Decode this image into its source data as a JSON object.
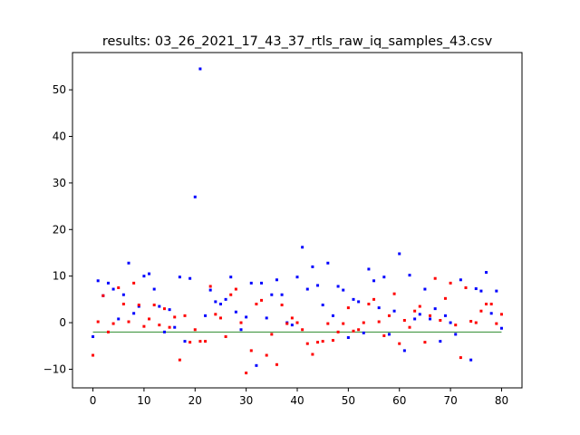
{
  "colors": {
    "series_a": "#0000ff",
    "series_b": "#ff0000",
    "hline": "#2e8b2e",
    "axes": "#000000",
    "background": "#ffffff"
  },
  "chart_data": {
    "type": "scatter",
    "title": "results: 03_26_2021_17_43_37_rtls_raw_iq_samples_43.csv",
    "xlabel": "",
    "ylabel": "",
    "xlim": [
      -4,
      84
    ],
    "ylim": [
      -14,
      58
    ],
    "grid": false,
    "legend": "none",
    "x_ticks": [
      0,
      10,
      20,
      30,
      40,
      50,
      60,
      70,
      80
    ],
    "y_ticks": [
      -10,
      0,
      10,
      20,
      30,
      40,
      50
    ],
    "x_tick_labels": [
      "0",
      "10",
      "20",
      "30",
      "40",
      "50",
      "60",
      "70",
      "80"
    ],
    "y_tick_labels": [
      "−10",
      "0",
      "10",
      "20",
      "30",
      "40",
      "50"
    ],
    "hline": {
      "y": -2,
      "x_range": [
        0,
        80
      ]
    },
    "series": [
      {
        "color": "#0000ff",
        "x": [
          0,
          1,
          2,
          3,
          4,
          5,
          6,
          7,
          8,
          9,
          10,
          11,
          12,
          13,
          14,
          15,
          16,
          17,
          18,
          19,
          20,
          21,
          22,
          23,
          24,
          25,
          26,
          27,
          28,
          29,
          30,
          31,
          32,
          33,
          34,
          35,
          36,
          37,
          38,
          39,
          40,
          41,
          42,
          43,
          44,
          45,
          46,
          47,
          48,
          49,
          50,
          51,
          52,
          53,
          54,
          55,
          56,
          57,
          58,
          59,
          60,
          61,
          62,
          63,
          64,
          65,
          66,
          67,
          68,
          69,
          70,
          71,
          72,
          73,
          74,
          75,
          76,
          77,
          78,
          79,
          80
        ],
        "y": [
          -3.0,
          9.0,
          5.8,
          8.5,
          7.2,
          0.8,
          6.0,
          12.8,
          2.0,
          3.5,
          10.0,
          10.5,
          7.2,
          3.5,
          -2.0,
          2.8,
          -1.0,
          9.8,
          -4.0,
          9.5,
          27.0,
          54.5,
          1.5,
          7.0,
          4.5,
          4.0,
          5.0,
          9.8,
          2.3,
          -1.5,
          1.2,
          8.5,
          -9.2,
          8.5,
          1.0,
          6.0,
          9.2,
          6.0,
          0.0,
          -0.5,
          9.8,
          16.2,
          7.2,
          12.0,
          8.0,
          3.8,
          12.8,
          1.5,
          7.8,
          7.0,
          -3.2,
          5.0,
          4.5,
          -2.2,
          11.5,
          9.0,
          3.2,
          9.8,
          -2.5,
          2.5,
          14.8,
          -6.0,
          10.2,
          0.8,
          1.8,
          7.2,
          0.8,
          3.0,
          -4.0,
          1.5,
          0.0,
          -2.5,
          9.2,
          7.5,
          -8.0,
          7.3,
          6.8,
          10.8,
          2.0,
          6.8,
          -1.2
        ]
      },
      {
        "color": "#ff0000",
        "x": [
          0,
          1,
          2,
          3,
          4,
          5,
          6,
          7,
          8,
          9,
          10,
          11,
          12,
          13,
          14,
          15,
          16,
          17,
          18,
          19,
          20,
          21,
          22,
          23,
          24,
          25,
          26,
          27,
          28,
          29,
          30,
          31,
          32,
          33,
          34,
          35,
          36,
          37,
          38,
          39,
          40,
          41,
          42,
          43,
          44,
          45,
          46,
          47,
          48,
          49,
          50,
          51,
          52,
          53,
          54,
          55,
          56,
          57,
          58,
          59,
          60,
          61,
          62,
          63,
          64,
          65,
          66,
          67,
          68,
          69,
          70,
          71,
          72,
          73,
          74,
          75,
          76,
          77,
          78,
          79,
          80
        ],
        "y": [
          -7.0,
          0.2,
          5.8,
          -2.0,
          -0.2,
          7.5,
          4.0,
          0.2,
          8.5,
          3.8,
          -0.8,
          0.8,
          3.8,
          -0.5,
          3.0,
          -1.0,
          1.2,
          -8.0,
          1.5,
          -4.2,
          -1.5,
          -4.0,
          -4.0,
          7.8,
          1.8,
          1.0,
          -3.0,
          6.0,
          7.2,
          0.0,
          -10.8,
          -6.0,
          4.0,
          4.8,
          -7.0,
          -2.5,
          -9.0,
          3.8,
          -0.2,
          1.0,
          0.0,
          -1.5,
          -4.5,
          -6.8,
          -4.2,
          -4.0,
          -0.2,
          -3.8,
          -2.0,
          -0.2,
          3.2,
          -1.8,
          -1.5,
          0.0,
          4.0,
          5.0,
          0.2,
          -2.8,
          1.5,
          6.2,
          -4.5,
          0.5,
          -1.0,
          2.5,
          3.5,
          -4.2,
          1.5,
          9.5,
          0.5,
          5.2,
          8.5,
          -0.5,
          -7.5,
          7.5,
          0.3,
          0.0,
          2.5,
          4.0,
          4.0,
          -0.2,
          1.8
        ]
      }
    ]
  }
}
